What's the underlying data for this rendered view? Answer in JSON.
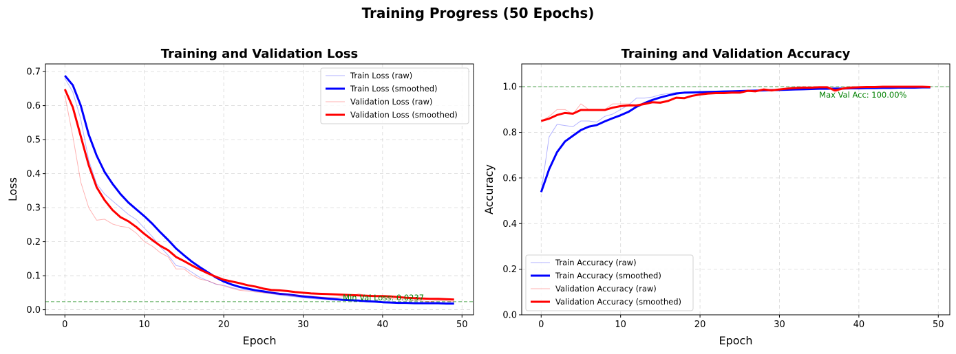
{
  "suptitle": "Training Progress (50 Epochs)",
  "chart_data": [
    {
      "type": "line",
      "title": "Training and Validation Loss",
      "xlabel": "Epoch",
      "ylabel": "Loss",
      "xlim": [
        -2.45,
        51.45
      ],
      "ylim": [
        -0.015,
        0.7225
      ],
      "xticks": [
        0,
        10,
        20,
        30,
        40,
        50
      ],
      "xtick_labels": [
        "0",
        "10",
        "20",
        "30",
        "40",
        "50"
      ],
      "yticks": [
        0.0,
        0.1,
        0.2,
        0.3,
        0.4,
        0.5,
        0.6,
        0.7
      ],
      "ytick_labels": [
        "0.0",
        "0.1",
        "0.2",
        "0.3",
        "0.4",
        "0.5",
        "0.6",
        "0.7"
      ],
      "grid": true,
      "legend_position": "upper right",
      "series": [
        {
          "name": "Train Loss (raw)",
          "color": "#0000ff",
          "style": "raw",
          "x": [
            0,
            1,
            2,
            3,
            4,
            5,
            6,
            7,
            8,
            9,
            10,
            11,
            12,
            13,
            14,
            15,
            16,
            17,
            18,
            19,
            20,
            21,
            22,
            23,
            24,
            25,
            26,
            27,
            28,
            29,
            30,
            31,
            32,
            33,
            34,
            35,
            36,
            37,
            38,
            39,
            40,
            41,
            42,
            43,
            44,
            45,
            46,
            47,
            48,
            49
          ],
          "values": [
            0.68,
            0.64,
            0.56,
            0.44,
            0.37,
            0.34,
            0.32,
            0.3,
            0.28,
            0.265,
            0.24,
            0.215,
            0.185,
            0.16,
            0.13,
            0.125,
            0.11,
            0.095,
            0.085,
            0.075,
            0.072,
            0.065,
            0.06,
            0.058,
            0.055,
            0.05,
            0.047,
            0.043,
            0.04,
            0.038,
            0.035,
            0.033,
            0.031,
            0.03,
            0.029,
            0.028,
            0.027,
            0.026,
            0.025,
            0.023,
            0.02,
            0.02,
            0.019,
            0.018,
            0.018,
            0.017,
            0.017,
            0.017,
            0.016,
            0.016
          ]
        },
        {
          "name": "Train Loss (smoothed)",
          "color": "#0000ff",
          "style": "smooth",
          "x": [
            0,
            1,
            2,
            3,
            4,
            5,
            6,
            7,
            8,
            9,
            10,
            11,
            12,
            13,
            14,
            15,
            16,
            17,
            18,
            19,
            20,
            21,
            22,
            23,
            24,
            25,
            26,
            27,
            28,
            29,
            30,
            31,
            32,
            33,
            34,
            35,
            36,
            37,
            38,
            39,
            40,
            41,
            42,
            43,
            44,
            45,
            46,
            47,
            48,
            49
          ],
          "values": [
            0.688,
            0.66,
            0.6,
            0.515,
            0.453,
            0.405,
            0.37,
            0.34,
            0.315,
            0.295,
            0.275,
            0.253,
            0.228,
            0.205,
            0.18,
            0.16,
            0.141,
            0.125,
            0.11,
            0.095,
            0.083,
            0.074,
            0.067,
            0.062,
            0.057,
            0.054,
            0.05,
            0.047,
            0.045,
            0.042,
            0.039,
            0.037,
            0.035,
            0.033,
            0.031,
            0.029,
            0.028,
            0.027,
            0.025,
            0.024,
            0.022,
            0.021,
            0.02,
            0.02,
            0.019,
            0.019,
            0.019,
            0.019,
            0.018,
            0.018
          ]
        },
        {
          "name": "Validation Loss (raw)",
          "color": "#ff0000",
          "style": "raw",
          "x": [
            0,
            1,
            2,
            3,
            4,
            5,
            6,
            7,
            8,
            9,
            10,
            11,
            12,
            13,
            14,
            15,
            16,
            17,
            18,
            19,
            20,
            21,
            22,
            23,
            24,
            25,
            26,
            27,
            28,
            29,
            30,
            31,
            32,
            33,
            34,
            35,
            36,
            37,
            38,
            39,
            40,
            41,
            42,
            43,
            44,
            45,
            46,
            47,
            48,
            49
          ],
          "values": [
            0.63,
            0.51,
            0.375,
            0.3,
            0.263,
            0.266,
            0.252,
            0.245,
            0.242,
            0.225,
            0.2,
            0.187,
            0.168,
            0.155,
            0.12,
            0.12,
            0.102,
            0.09,
            0.085,
            0.076,
            0.07,
            0.063,
            0.057,
            0.055,
            0.052,
            0.05,
            0.049,
            0.047,
            0.044,
            0.042,
            0.042,
            0.04,
            0.038,
            0.036,
            0.036,
            0.038,
            0.04,
            0.047,
            0.041,
            0.04,
            0.035,
            0.033,
            0.03,
            0.028,
            0.027,
            0.026,
            0.024,
            0.027,
            0.026,
            0.024
          ]
        },
        {
          "name": "Validation Loss (smoothed)",
          "color": "#ff0000",
          "style": "smooth",
          "x": [
            0,
            1,
            2,
            3,
            4,
            5,
            6,
            7,
            8,
            9,
            10,
            11,
            12,
            13,
            14,
            15,
            16,
            17,
            18,
            19,
            20,
            21,
            22,
            23,
            24,
            25,
            26,
            27,
            28,
            29,
            30,
            31,
            32,
            33,
            34,
            35,
            36,
            37,
            38,
            39,
            40,
            41,
            42,
            43,
            44,
            45,
            46,
            47,
            48,
            49
          ],
          "values": [
            0.648,
            0.595,
            0.51,
            0.425,
            0.36,
            0.322,
            0.293,
            0.272,
            0.26,
            0.243,
            0.223,
            0.205,
            0.188,
            0.175,
            0.155,
            0.143,
            0.13,
            0.118,
            0.107,
            0.097,
            0.088,
            0.083,
            0.078,
            0.072,
            0.068,
            0.062,
            0.058,
            0.057,
            0.055,
            0.052,
            0.05,
            0.048,
            0.047,
            0.046,
            0.045,
            0.044,
            0.043,
            0.042,
            0.041,
            0.04,
            0.04,
            0.039,
            0.037,
            0.035,
            0.034,
            0.033,
            0.032,
            0.032,
            0.031,
            0.03
          ]
        }
      ],
      "hline": {
        "y": 0.0237,
        "color": "#008000"
      },
      "annotation": {
        "text": "Min Val Loss: 0.0237",
        "x": 35,
        "y": 0.0237,
        "color": "#008000"
      }
    },
    {
      "type": "line",
      "title": "Training and Validation Accuracy",
      "xlabel": "Epoch",
      "ylabel": "Accuracy",
      "xlim": [
        -2.45,
        51.45
      ],
      "ylim": [
        0.0,
        1.1
      ],
      "xticks": [
        0,
        10,
        20,
        30,
        40,
        50
      ],
      "xtick_labels": [
        "0",
        "10",
        "20",
        "30",
        "40",
        "50"
      ],
      "yticks": [
        0.0,
        0.2,
        0.4,
        0.6,
        0.8,
        1.0
      ],
      "ytick_labels": [
        "0.0",
        "0.2",
        "0.4",
        "0.6",
        "0.8",
        "1.0"
      ],
      "grid": true,
      "legend_position": "lower left",
      "series": [
        {
          "name": "Train Accuracy (raw)",
          "color": "#0000ff",
          "style": "raw",
          "x": [
            0,
            1,
            2,
            3,
            4,
            5,
            6,
            7,
            8,
            9,
            10,
            11,
            12,
            13,
            14,
            15,
            16,
            17,
            18,
            19,
            20,
            21,
            22,
            23,
            24,
            25,
            26,
            27,
            28,
            29,
            30,
            31,
            32,
            33,
            34,
            35,
            36,
            37,
            38,
            39,
            40,
            41,
            42,
            43,
            44,
            45,
            46,
            47,
            48,
            49
          ],
          "values": [
            0.54,
            0.78,
            0.835,
            0.83,
            0.825,
            0.85,
            0.85,
            0.845,
            0.87,
            0.88,
            0.9,
            0.92,
            0.95,
            0.95,
            0.955,
            0.965,
            0.97,
            0.975,
            0.975,
            0.975,
            0.98,
            0.978,
            0.978,
            0.98,
            0.98,
            0.98,
            0.983,
            0.985,
            0.985,
            0.987,
            0.988,
            0.988,
            0.99,
            0.99,
            0.99,
            0.99,
            0.991,
            0.992,
            0.993,
            0.994,
            0.994,
            0.995,
            0.995,
            0.996,
            0.996,
            0.997,
            0.997,
            0.997,
            0.998,
            0.998
          ]
        },
        {
          "name": "Train Accuracy (smoothed)",
          "color": "#0000ff",
          "style": "smooth",
          "x": [
            0,
            1,
            2,
            3,
            4,
            5,
            6,
            7,
            8,
            9,
            10,
            11,
            12,
            13,
            14,
            15,
            16,
            17,
            18,
            19,
            20,
            21,
            22,
            23,
            24,
            25,
            26,
            27,
            28,
            29,
            30,
            31,
            32,
            33,
            34,
            35,
            36,
            37,
            38,
            39,
            40,
            41,
            42,
            43,
            44,
            45,
            46,
            47,
            48,
            49
          ],
          "values": [
            0.538,
            0.638,
            0.713,
            0.76,
            0.785,
            0.81,
            0.825,
            0.832,
            0.848,
            0.862,
            0.875,
            0.89,
            0.912,
            0.928,
            0.942,
            0.953,
            0.962,
            0.97,
            0.974,
            0.975,
            0.976,
            0.977,
            0.978,
            0.979,
            0.98,
            0.981,
            0.982,
            0.983,
            0.984,
            0.985,
            0.986,
            0.987,
            0.988,
            0.989,
            0.99,
            0.991,
            0.991,
            0.992,
            0.992,
            0.993,
            0.993,
            0.994,
            0.994,
            0.995,
            0.995,
            0.996,
            0.996,
            0.996,
            0.997,
            0.997
          ]
        },
        {
          "name": "Validation Accuracy (raw)",
          "color": "#ff0000",
          "style": "raw",
          "x": [
            0,
            1,
            2,
            3,
            4,
            5,
            6,
            7,
            8,
            9,
            10,
            11,
            12,
            13,
            14,
            15,
            16,
            17,
            18,
            19,
            20,
            21,
            22,
            23,
            24,
            25,
            26,
            27,
            28,
            29,
            30,
            31,
            32,
            33,
            34,
            35,
            36,
            37,
            38,
            39,
            40,
            41,
            42,
            43,
            44,
            45,
            46,
            47,
            48,
            49
          ],
          "values": [
            0.85,
            0.87,
            0.9,
            0.9,
            0.88,
            0.925,
            0.9,
            0.9,
            0.9,
            0.925,
            0.925,
            0.925,
            0.92,
            0.93,
            0.93,
            0.935,
            0.94,
            0.95,
            0.95,
            0.96,
            0.97,
            0.975,
            0.97,
            0.975,
            0.975,
            0.975,
            0.985,
            0.98,
            0.99,
            0.98,
            0.99,
            0.995,
            0.995,
            1.0,
            0.995,
            1.0,
            1.0,
            0.975,
            0.995,
            1.0,
            1.0,
            1.0,
            1.0,
            1.0,
            1.0,
            1.0,
            1.0,
            1.0,
            1.0,
            1.0
          ]
        },
        {
          "name": "Validation Accuracy (smoothed)",
          "color": "#ff0000",
          "style": "smooth",
          "x": [
            0,
            1,
            2,
            3,
            4,
            5,
            6,
            7,
            8,
            9,
            10,
            11,
            12,
            13,
            14,
            15,
            16,
            17,
            18,
            19,
            20,
            21,
            22,
            23,
            24,
            25,
            26,
            27,
            28,
            29,
            30,
            31,
            32,
            33,
            34,
            35,
            36,
            37,
            38,
            39,
            40,
            41,
            42,
            43,
            44,
            45,
            46,
            47,
            48,
            49
          ],
          "values": [
            0.85,
            0.86,
            0.876,
            0.885,
            0.882,
            0.898,
            0.898,
            0.898,
            0.898,
            0.908,
            0.915,
            0.918,
            0.918,
            0.924,
            0.932,
            0.93,
            0.938,
            0.952,
            0.95,
            0.96,
            0.966,
            0.97,
            0.972,
            0.972,
            0.974,
            0.974,
            0.982,
            0.98,
            0.988,
            0.984,
            0.988,
            0.992,
            0.994,
            0.996,
            0.996,
            0.998,
            0.998,
            0.984,
            0.992,
            0.996,
            0.998,
            0.999,
            0.999,
            1.0,
            1.0,
            1.0,
            1.0,
            1.0,
            1.0,
            0.999
          ]
        }
      ],
      "hline": {
        "y": 1.0,
        "color": "#008000"
      },
      "annotation": {
        "text": "Max Val Acc: 100.00%",
        "x": 35,
        "y": 1.0,
        "color": "#008000"
      }
    }
  ]
}
